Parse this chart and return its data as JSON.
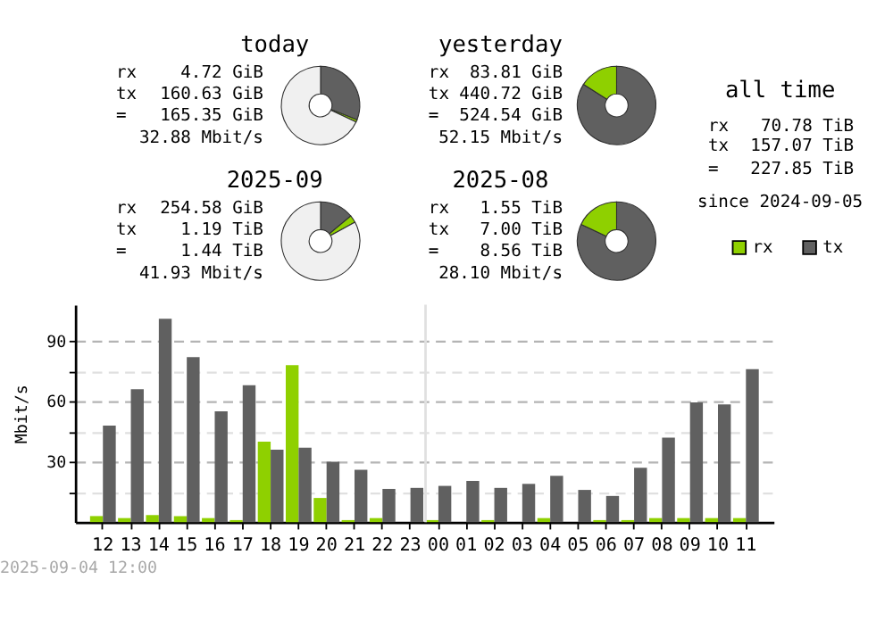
{
  "chart_data": [
    {
      "type": "donut",
      "title": "today",
      "values": [
        31,
        1,
        68
      ],
      "colors": [
        "#606060",
        "#8fd000",
        "#f0f0f0"
      ],
      "annotations": [
        "rx",
        "4.72 GiB",
        "tx",
        "160.63 GiB",
        "=",
        "165.35 GiB",
        "32.88 Mbit/s"
      ]
    },
    {
      "type": "donut",
      "title": "yesterday",
      "values": [
        84,
        16
      ],
      "colors": [
        "#606060",
        "#8fd000"
      ],
      "annotations": [
        "rx",
        "83.81 GiB",
        "tx",
        "440.72 GiB",
        "=",
        "524.54 GiB",
        "52.15 Mbit/s"
      ]
    },
    {
      "type": "other",
      "title": "all time",
      "annotations": [
        "rx",
        "70.78 TiB",
        "tx",
        "157.07 TiB",
        "=",
        "227.85 TiB",
        "since 2024-09-05"
      ]
    },
    {
      "type": "donut",
      "title": "2025-09",
      "values": [
        14,
        3,
        83
      ],
      "colors": [
        "#606060",
        "#8fd000",
        "#f0f0f0"
      ],
      "annotations": [
        "rx",
        "254.58 GiB",
        "tx",
        "1.19 TiB",
        "=",
        "1.44 TiB",
        "41.93 Mbit/s"
      ]
    },
    {
      "type": "donut",
      "title": "2025-08",
      "values": [
        82,
        18
      ],
      "colors": [
        "#606060",
        "#8fd000"
      ],
      "annotations": [
        "rx",
        "1.55 TiB",
        "tx",
        "7.00 TiB",
        "=",
        "8.56 TiB",
        "28.10 Mbit/s"
      ]
    },
    {
      "type": "bar",
      "ylabel": "Mbit/s",
      "categories": [
        "12",
        "13",
        "14",
        "15",
        "16",
        "17",
        "18",
        "19",
        "20",
        "21",
        "22",
        "23",
        "00",
        "01",
        "02",
        "03",
        "04",
        "05",
        "06",
        "07",
        "08",
        "09",
        "10",
        "11"
      ],
      "series": [
        {
          "name": "rx",
          "color": "#8fd000",
          "values": [
            3,
            2,
            3.5,
            3,
            2,
            1,
            40,
            78,
            12,
            1,
            2,
            0,
            1,
            0,
            1,
            0,
            2,
            0,
            1,
            1,
            2,
            2,
            2,
            2
          ]
        },
        {
          "name": "tx",
          "color": "#606060",
          "values": [
            48,
            66,
            101,
            82,
            55,
            68,
            36,
            37,
            30,
            26,
            16.5,
            17,
            18,
            20.5,
            17,
            19,
            23,
            16,
            13,
            27,
            42,
            59.5,
            58.5,
            76
          ]
        }
      ],
      "ylim": [
        0,
        108
      ],
      "yticks": [
        {
          "value": 15,
          "label": null
        },
        30,
        {
          "value": 45,
          "label": null
        },
        60,
        {
          "value": 75,
          "label": null
        },
        90
      ],
      "grid": "y",
      "legend": "top right",
      "ref_lines": [
        {
          "axis": "x",
          "value": "00",
          "color": "#e0e0e0"
        }
      ],
      "annotations": [
        "2025-09-04 12:00"
      ]
    }
  ]
}
